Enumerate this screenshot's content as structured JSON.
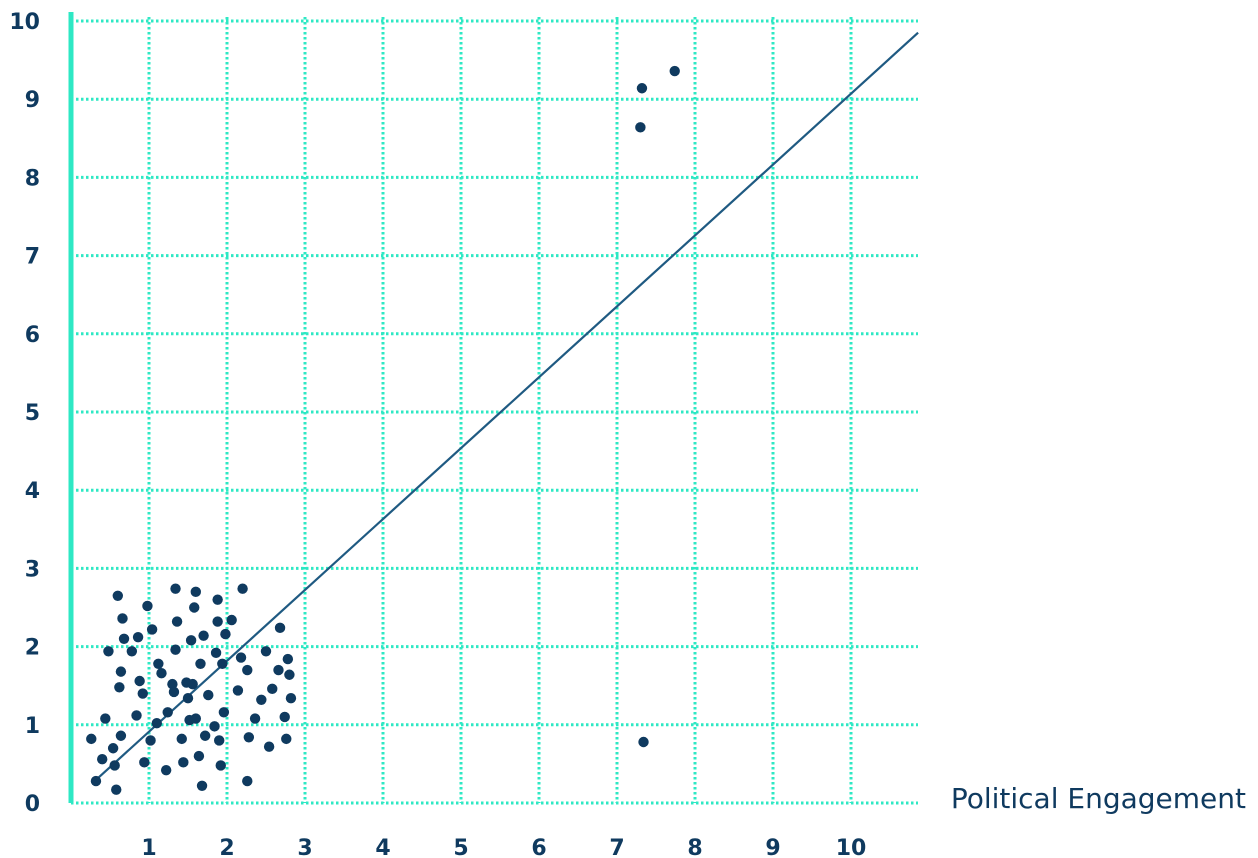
{
  "chart_data": {
    "type": "scatter",
    "title": "",
    "xlabel": "Political Engagement",
    "ylabel": "",
    "xlim": [
      0,
      11
    ],
    "ylim": [
      0,
      10
    ],
    "grid": true,
    "x_ticks": [
      "1",
      "2",
      "3",
      "4",
      "5",
      "6",
      "7",
      "8",
      "9",
      "10"
    ],
    "y_ticks": [
      "0",
      "1",
      "2",
      "3",
      "4",
      "5",
      "6",
      "7",
      "8",
      "9",
      "10"
    ],
    "colors": {
      "grid": "#2ee8c4",
      "axis": "#2ee8c4",
      "points": "#0f3a5f",
      "trend_line": "#1f5a82",
      "labels": "#0f3a5f"
    },
    "trend_line": {
      "x": [
        0.27,
        10.86
      ],
      "y": [
        0.25,
        9.85
      ]
    },
    "series": [
      {
        "values": [
          [
            0.26,
            0.82
          ],
          [
            0.32,
            0.28
          ],
          [
            0.4,
            0.56
          ],
          [
            0.44,
            1.08
          ],
          [
            0.48,
            1.94
          ],
          [
            0.54,
            0.7
          ],
          [
            0.56,
            0.48
          ],
          [
            0.58,
            0.17
          ],
          [
            0.6,
            2.65
          ],
          [
            0.62,
            1.48
          ],
          [
            0.64,
            0.86
          ],
          [
            0.64,
            1.68
          ],
          [
            0.66,
            2.36
          ],
          [
            0.68,
            2.1
          ],
          [
            0.78,
            1.94
          ],
          [
            0.84,
            1.12
          ],
          [
            0.86,
            2.12
          ],
          [
            0.88,
            1.56
          ],
          [
            0.92,
            1.4
          ],
          [
            0.94,
            0.52
          ],
          [
            0.98,
            2.52
          ],
          [
            1.02,
            0.8
          ],
          [
            1.04,
            2.22
          ],
          [
            1.1,
            1.02
          ],
          [
            1.12,
            1.78
          ],
          [
            1.16,
            1.66
          ],
          [
            1.22,
            0.42
          ],
          [
            1.24,
            1.16
          ],
          [
            1.3,
            1.52
          ],
          [
            1.32,
            1.42
          ],
          [
            1.34,
            1.96
          ],
          [
            1.34,
            2.74
          ],
          [
            1.36,
            2.32
          ],
          [
            1.42,
            0.82
          ],
          [
            1.44,
            0.52
          ],
          [
            1.48,
            1.54
          ],
          [
            1.5,
            1.34
          ],
          [
            1.52,
            1.06
          ],
          [
            1.54,
            2.08
          ],
          [
            1.56,
            1.52
          ],
          [
            1.58,
            2.5
          ],
          [
            1.6,
            1.08
          ],
          [
            1.6,
            2.7
          ],
          [
            1.64,
            0.6
          ],
          [
            1.66,
            1.78
          ],
          [
            1.68,
            0.22
          ],
          [
            1.7,
            2.14
          ],
          [
            1.72,
            0.86
          ],
          [
            1.76,
            1.38
          ],
          [
            1.84,
            0.98
          ],
          [
            1.86,
            1.92
          ],
          [
            1.88,
            2.32
          ],
          [
            1.88,
            2.6
          ],
          [
            1.9,
            0.8
          ],
          [
            1.92,
            0.48
          ],
          [
            1.94,
            1.78
          ],
          [
            1.96,
            1.16
          ],
          [
            1.98,
            2.16
          ],
          [
            2.06,
            2.34
          ],
          [
            2.14,
            1.44
          ],
          [
            2.18,
            1.86
          ],
          [
            2.2,
            2.74
          ],
          [
            2.26,
            0.28
          ],
          [
            2.26,
            1.7
          ],
          [
            2.28,
            0.84
          ],
          [
            2.36,
            1.08
          ],
          [
            2.44,
            1.32
          ],
          [
            2.5,
            1.94
          ],
          [
            2.54,
            0.72
          ],
          [
            2.58,
            1.46
          ],
          [
            2.66,
            1.7
          ],
          [
            2.68,
            2.24
          ],
          [
            2.74,
            1.1
          ],
          [
            2.76,
            0.82
          ],
          [
            2.78,
            1.84
          ],
          [
            2.8,
            1.64
          ],
          [
            2.82,
            1.34
          ],
          [
            7.3,
            8.64
          ],
          [
            7.32,
            9.14
          ],
          [
            7.34,
            0.78
          ],
          [
            7.74,
            9.36
          ]
        ]
      }
    ]
  }
}
